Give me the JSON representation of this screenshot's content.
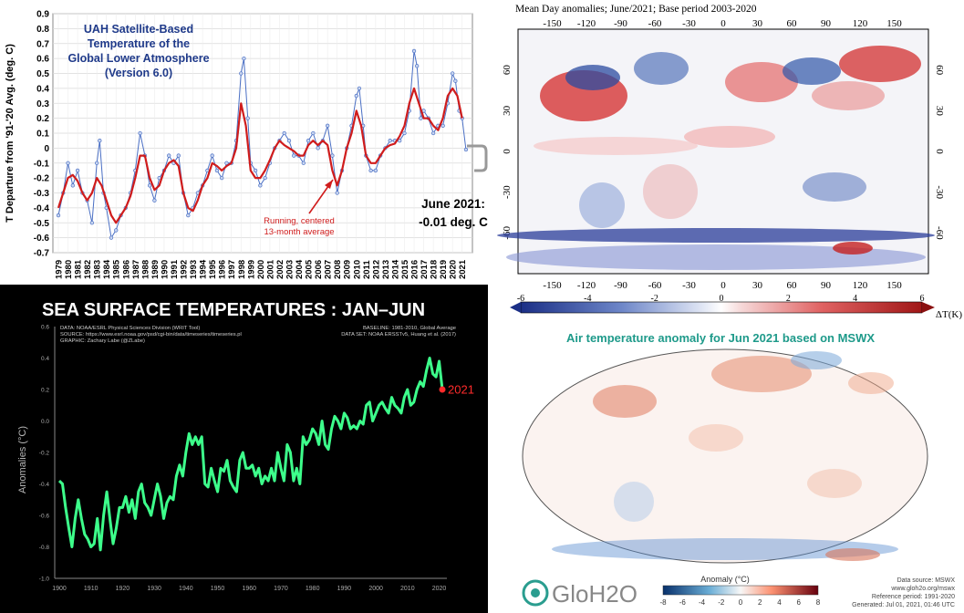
{
  "uah": {
    "title": [
      "UAH Satellite-Based",
      "Temperature of the",
      "Global Lower Atmosphere",
      "(Version 6.0)"
    ],
    "ylabel": "T Departure from '91-'20 Avg. (deg. C)",
    "annotation": [
      "June 2021:",
      "-0.01 deg. C"
    ],
    "avg_label": [
      "Running, centered",
      "13-month average"
    ],
    "colors": {
      "monthly": "#4a6fc4",
      "average": "#d01c1c",
      "title": "#1f3a8a"
    },
    "chart_data": {
      "type": "line",
      "ylim": [
        -0.7,
        0.9
      ],
      "yticks": [
        "-0.7",
        "-0.6",
        "-0.5",
        "-0.4",
        "-0.3",
        "-0.2",
        "-0.1",
        "0",
        "0.1",
        "0.2",
        "0.3",
        "0.4",
        "0.5",
        "0.6",
        "0.7",
        "0.8",
        "0.9"
      ],
      "xticks": [
        "1979",
        "1980",
        "1981",
        "1982",
        "1983",
        "1984",
        "1985",
        "1986",
        "1987",
        "1988",
        "1989",
        "1990",
        "1991",
        "1992",
        "1993",
        "1994",
        "1995",
        "1996",
        "1997",
        "1998",
        "1999",
        "2000",
        "2001",
        "2002",
        "2003",
        "2004",
        "2005",
        "2006",
        "2007",
        "2008",
        "2009",
        "2010",
        "2011",
        "2012",
        "2013",
        "2014",
        "2015",
        "2016",
        "2017",
        "2018",
        "2019",
        "2020",
        "2021"
      ],
      "grid": true,
      "series": [
        {
          "style": "monthly",
          "x": [
            1979,
            1979.5,
            1980,
            1980.5,
            1981,
            1981.5,
            1982,
            1982.5,
            1983,
            1983.3,
            1983.7,
            1984,
            1984.5,
            1985,
            1985.5,
            1986,
            1986.5,
            1987,
            1987.5,
            1988,
            1988.5,
            1989,
            1989.5,
            1990,
            1990.5,
            1991,
            1991.5,
            1992,
            1992.5,
            1993,
            1993.5,
            1994,
            1994.5,
            1995,
            1995.5,
            1996,
            1996.5,
            1997,
            1997.5,
            1998,
            1998.3,
            1998.7,
            1999,
            1999.5,
            2000,
            2000.5,
            2001,
            2001.5,
            2002,
            2002.5,
            2003,
            2003.5,
            2004,
            2004.5,
            2005,
            2005.5,
            2006,
            2006.5,
            2007,
            2007.5,
            2008,
            2008.5,
            2009,
            2009.5,
            2010,
            2010.3,
            2010.7,
            2011,
            2011.5,
            2012,
            2012.5,
            2013,
            2013.5,
            2014,
            2014.5,
            2015,
            2015.5,
            2016,
            2016.3,
            2016.7,
            2017,
            2017.5,
            2018,
            2018.5,
            2019,
            2019.5,
            2020,
            2020.3,
            2020.7,
            2021,
            2021.4
          ],
          "y": [
            -0.45,
            -0.3,
            -0.1,
            -0.25,
            -0.15,
            -0.3,
            -0.35,
            -0.5,
            -0.1,
            0.05,
            -0.3,
            -0.4,
            -0.6,
            -0.55,
            -0.45,
            -0.4,
            -0.3,
            -0.15,
            0.1,
            -0.05,
            -0.25,
            -0.35,
            -0.2,
            -0.15,
            -0.05,
            -0.1,
            -0.05,
            -0.3,
            -0.45,
            -0.4,
            -0.3,
            -0.25,
            -0.15,
            -0.05,
            -0.15,
            -0.2,
            -0.1,
            -0.1,
            0.05,
            0.5,
            0.6,
            0.2,
            -0.1,
            -0.15,
            -0.25,
            -0.2,
            -0.1,
            0,
            0.05,
            0.1,
            0.05,
            -0.05,
            -0.05,
            -0.1,
            0.05,
            0.1,
            0,
            0.05,
            0.15,
            -0.05,
            -0.3,
            -0.15,
            0,
            0.15,
            0.35,
            0.4,
            0.15,
            -0.05,
            -0.15,
            -0.15,
            -0.05,
            0,
            0.05,
            0.05,
            0.05,
            0.1,
            0.25,
            0.65,
            0.55,
            0.2,
            0.25,
            0.2,
            0.1,
            0.15,
            0.15,
            0.3,
            0.5,
            0.45,
            0.25,
            0.2,
            -0.01
          ]
        },
        {
          "style": "average",
          "x": [
            1979,
            1979.5,
            1980,
            1980.5,
            1981,
            1981.5,
            1982,
            1982.5,
            1983,
            1983.5,
            1984,
            1984.5,
            1985,
            1985.5,
            1986,
            1986.5,
            1987,
            1987.5,
            1988,
            1988.5,
            1989,
            1989.5,
            1990,
            1990.5,
            1991,
            1991.5,
            1992,
            1992.5,
            1993,
            1993.5,
            1994,
            1994.5,
            1995,
            1995.5,
            1996,
            1996.5,
            1997,
            1997.5,
            1998,
            1998.5,
            1999,
            1999.5,
            2000,
            2000.5,
            2001,
            2001.5,
            2002,
            2002.5,
            2003,
            2003.5,
            2004,
            2004.5,
            2005,
            2005.5,
            2006,
            2006.5,
            2007,
            2007.5,
            2008,
            2008.5,
            2009,
            2009.5,
            2010,
            2010.5,
            2011,
            2011.5,
            2012,
            2012.5,
            2013,
            2013.5,
            2014,
            2014.5,
            2015,
            2015.5,
            2016,
            2016.5,
            2017,
            2017.5,
            2018,
            2018.5,
            2019,
            2019.5,
            2020,
            2020.5,
            2021
          ],
          "y": [
            -0.4,
            -0.3,
            -0.2,
            -0.18,
            -0.22,
            -0.3,
            -0.35,
            -0.3,
            -0.2,
            -0.25,
            -0.35,
            -0.45,
            -0.5,
            -0.45,
            -0.4,
            -0.32,
            -0.2,
            -0.05,
            -0.05,
            -0.2,
            -0.28,
            -0.25,
            -0.15,
            -0.1,
            -0.08,
            -0.12,
            -0.3,
            -0.4,
            -0.42,
            -0.35,
            -0.25,
            -0.2,
            -0.1,
            -0.12,
            -0.15,
            -0.12,
            -0.1,
            0,
            0.3,
            0.15,
            -0.15,
            -0.2,
            -0.2,
            -0.15,
            -0.08,
            0,
            0.05,
            0.02,
            0,
            -0.02,
            -0.05,
            -0.05,
            0.02,
            0.05,
            0.02,
            0.05,
            0.02,
            -0.15,
            -0.25,
            -0.15,
            0,
            0.1,
            0.25,
            0.15,
            -0.05,
            -0.1,
            -0.1,
            -0.05,
            0,
            0.02,
            0.03,
            0.08,
            0.15,
            0.3,
            0.4,
            0.3,
            0.2,
            0.2,
            0.15,
            0.12,
            0.2,
            0.35,
            0.4,
            0.35,
            0.2
          ]
        }
      ]
    }
  },
  "ncep": {
    "title": "Mean Day anomalies;  June/2021; Base period 2003-2020",
    "lon_labels": [
      "-150",
      "-120",
      "-90",
      "-60",
      "-30",
      "0",
      "30",
      "60",
      "90",
      "120",
      "150"
    ],
    "lat_labels": [
      "60",
      "30",
      "0",
      "-30",
      "-60"
    ],
    "colorbar_ticks": [
      "-6",
      "-4",
      "-2",
      "0",
      "2",
      "4",
      "6"
    ],
    "colorbar_label": "ΔT(K)"
  },
  "sst": {
    "title": "SEA SURFACE TEMPERATURES : JAN–JUN",
    "meta_left": [
      "DATA: NOAA/ESRL Physical Sciences Division (WRIT Tool)",
      "SOURCE: https://www.esrl.noaa.gov/psd/cgi-bin/data/timeseries/timeseries.pl",
      "GRAPHIC: Zachary Labe (@ZLabe)"
    ],
    "meta_right": [
      "BASELINE: 1981-2010, Global Average",
      "DATA SET: NOAA ERSSTv5, Huang et al. (2017)"
    ],
    "ylabel": "Anomalies (°C)",
    "end_label": "2021",
    "colors": {
      "line": "#3dff8b",
      "end_dot": "#ff2b2b"
    },
    "chart_data": {
      "type": "line",
      "ylim": [
        -1.0,
        0.6
      ],
      "xlim": [
        1900,
        2021
      ],
      "yticks": [
        "-1.0",
        "-0.8",
        "-0.6",
        "-0.4",
        "-0.2",
        "0.0",
        "0.2",
        "0.4",
        "0.6"
      ],
      "xticks": [
        "1900",
        "1910",
        "1920",
        "1930",
        "1940",
        "1950",
        "1960",
        "1970",
        "1980",
        "1990",
        "2000",
        "2010",
        "2020"
      ],
      "grid": false,
      "x": [
        1900,
        1901,
        1902,
        1903,
        1904,
        1905,
        1906,
        1907,
        1908,
        1909,
        1910,
        1911,
        1912,
        1913,
        1914,
        1915,
        1916,
        1917,
        1918,
        1919,
        1920,
        1921,
        1922,
        1923,
        1924,
        1925,
        1926,
        1927,
        1928,
        1929,
        1930,
        1931,
        1932,
        1933,
        1934,
        1935,
        1936,
        1937,
        1938,
        1939,
        1940,
        1941,
        1942,
        1943,
        1944,
        1945,
        1946,
        1947,
        1948,
        1949,
        1950,
        1951,
        1952,
        1953,
        1954,
        1955,
        1956,
        1957,
        1958,
        1959,
        1960,
        1961,
        1962,
        1963,
        1964,
        1965,
        1966,
        1967,
        1968,
        1969,
        1970,
        1971,
        1972,
        1973,
        1974,
        1975,
        1976,
        1977,
        1978,
        1979,
        1980,
        1981,
        1982,
        1983,
        1984,
        1985,
        1986,
        1987,
        1988,
        1989,
        1990,
        1991,
        1992,
        1993,
        1994,
        1995,
        1996,
        1997,
        1998,
        1999,
        2000,
        2001,
        2002,
        2003,
        2004,
        2005,
        2006,
        2007,
        2008,
        2009,
        2010,
        2011,
        2012,
        2013,
        2014,
        2015,
        2016,
        2017,
        2018,
        2019,
        2020,
        2021
      ],
      "y": [
        -0.38,
        -0.4,
        -0.55,
        -0.68,
        -0.8,
        -0.62,
        -0.5,
        -0.62,
        -0.72,
        -0.75,
        -0.8,
        -0.78,
        -0.62,
        -0.82,
        -0.6,
        -0.45,
        -0.62,
        -0.78,
        -0.68,
        -0.55,
        -0.55,
        -0.48,
        -0.58,
        -0.5,
        -0.62,
        -0.45,
        -0.4,
        -0.52,
        -0.55,
        -0.6,
        -0.5,
        -0.4,
        -0.48,
        -0.62,
        -0.52,
        -0.48,
        -0.5,
        -0.35,
        -0.28,
        -0.35,
        -0.2,
        -0.08,
        -0.15,
        -0.1,
        -0.15,
        -0.1,
        -0.4,
        -0.42,
        -0.3,
        -0.38,
        -0.45,
        -0.3,
        -0.32,
        -0.25,
        -0.38,
        -0.42,
        -0.45,
        -0.25,
        -0.2,
        -0.3,
        -0.3,
        -0.28,
        -0.35,
        -0.3,
        -0.4,
        -0.35,
        -0.38,
        -0.3,
        -0.38,
        -0.2,
        -0.3,
        -0.38,
        -0.15,
        -0.2,
        -0.38,
        -0.3,
        -0.4,
        -0.1,
        -0.15,
        -0.12,
        -0.05,
        -0.08,
        -0.15,
        0.0,
        -0.15,
        -0.18,
        -0.05,
        0.03,
        0.0,
        -0.05,
        0.05,
        0.02,
        -0.05,
        -0.03,
        -0.05,
        0.0,
        -0.02,
        0.1,
        0.12,
        0.0,
        0.05,
        0.1,
        0.12,
        0.08,
        0.05,
        0.15,
        0.1,
        0.08,
        0.05,
        0.15,
        0.2,
        0.1,
        0.12,
        0.2,
        0.25,
        0.22,
        0.32,
        0.4,
        0.3,
        0.28,
        0.38,
        0.2
      ]
    }
  },
  "mswx": {
    "title": "Air temperature anomaly for Jun 2021 based on MSWX",
    "logo_text": "GloH2O",
    "colorbar_label": "Anomaly (°C)",
    "colorbar_ticks": [
      "-8",
      "-6",
      "-4",
      "-2",
      "0",
      "2",
      "4",
      "6",
      "8"
    ],
    "footer": [
      "Data source: MSWX",
      "www.gloh2o.org/mswx",
      "Reference period: 1991-2020",
      "Generated: Jul 01, 2021, 01:46 UTC"
    ]
  }
}
